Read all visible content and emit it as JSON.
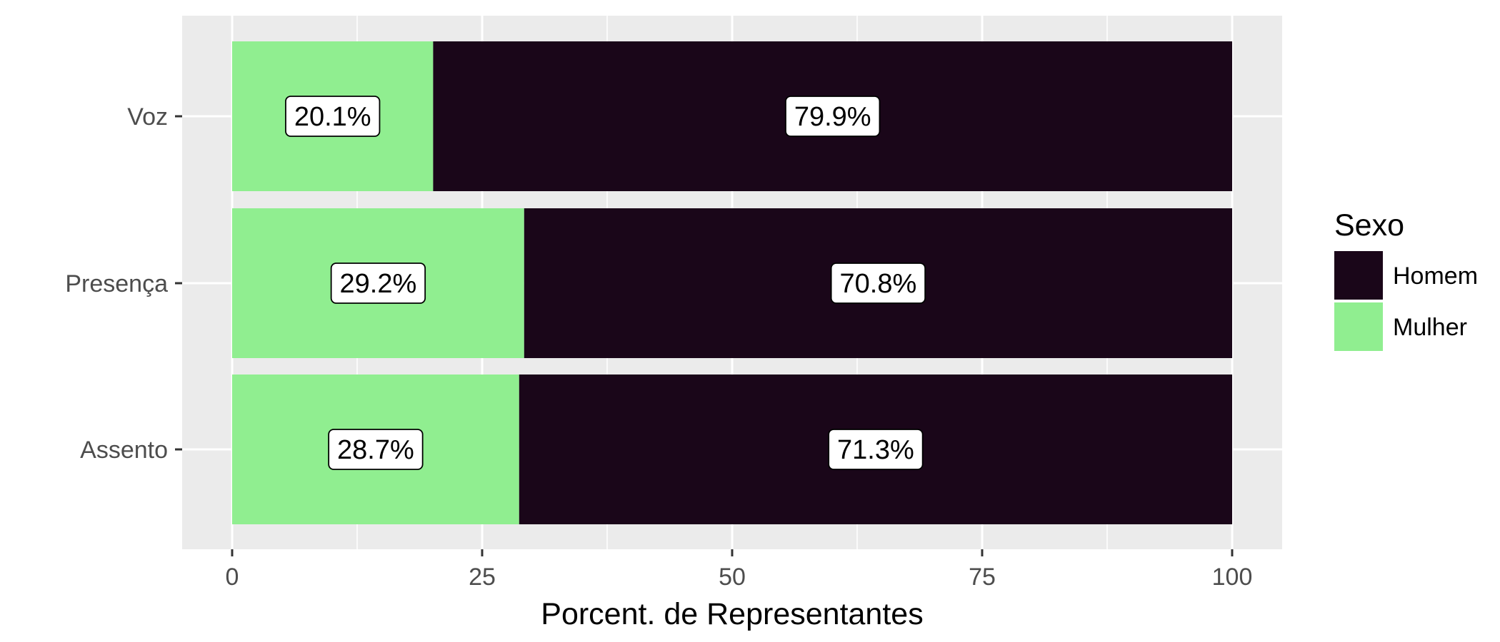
{
  "chart_data": {
    "type": "bar",
    "orientation": "horizontal",
    "stacked": true,
    "categories": [
      "Voz",
      "Presença",
      "Assento"
    ],
    "series": [
      {
        "name": "Mulher",
        "values": [
          20.1,
          29.2,
          28.7
        ],
        "labels": [
          "20.1%",
          "29.2%",
          "28.7%"
        ],
        "color": "#90ee90"
      },
      {
        "name": "Homem",
        "values": [
          79.9,
          70.8,
          71.3
        ],
        "labels": [
          "79.9%",
          "70.8%",
          "71.3%"
        ],
        "color": "#1a0619"
      }
    ],
    "xlabel": "Porcent. de Representantes",
    "ylabel": "",
    "xlim": [
      0,
      100
    ],
    "xticks": [
      "0",
      "25",
      "50",
      "75",
      "100"
    ],
    "grid": true,
    "legend": {
      "title": "Sexo",
      "position": "right",
      "order": [
        "Homem",
        "Mulher"
      ]
    }
  }
}
